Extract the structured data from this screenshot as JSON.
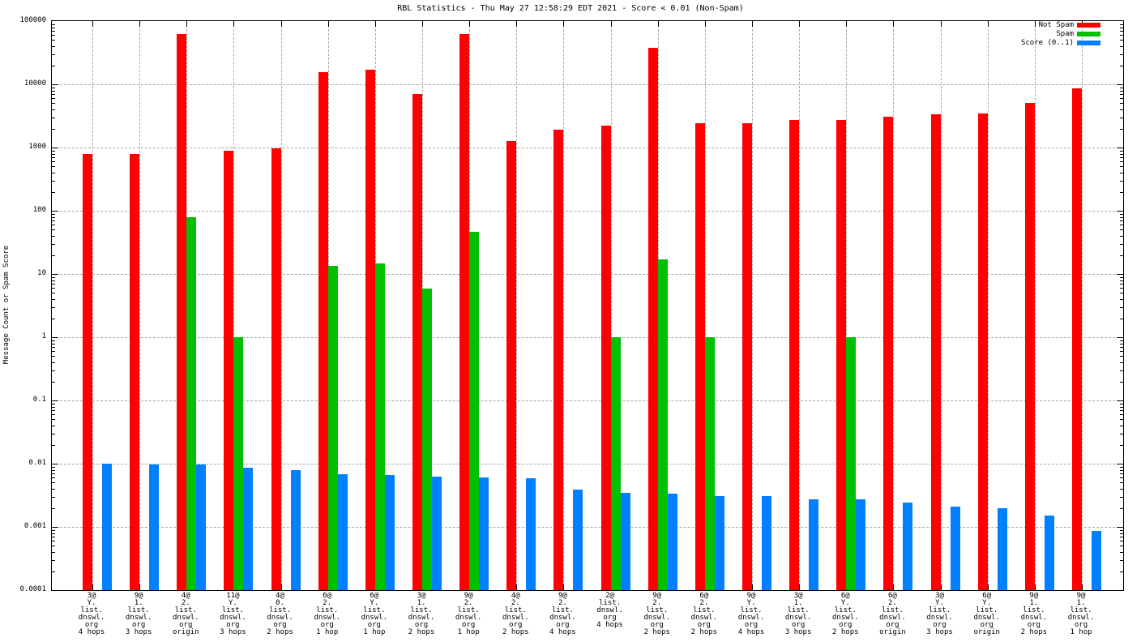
{
  "title": "RBL Statistics - Thu May 27 12:58:29 EDT 2021 - Score < 0.01 (Non-Spam)",
  "ylabel": "Message Count or Spam Score",
  "chart_data": {
    "type": "bar",
    "y_scale": "log10",
    "ylim": [
      0.0001,
      100000
    ],
    "y_ticks": [
      "100000",
      "10000",
      "1000",
      "100",
      "10",
      "1",
      "0.1",
      "0.01",
      "0.001",
      "0.0001"
    ],
    "grid": true,
    "legend_position": "top-right-inside",
    "colors": {
      "not_spam": "#ff0000",
      "spam": "#00c000",
      "score": "#0080ff",
      "grid": "#a9a9a9"
    },
    "categories": [
      [
        "3@",
        "Y.",
        "list.",
        "dnswl.",
        "org",
        "4 hops"
      ],
      [
        "9@",
        "1.",
        "list.",
        "dnswl.",
        "org",
        "3 hops"
      ],
      [
        "4@",
        "2.",
        "list.",
        "dnswl.",
        "org",
        "origin"
      ],
      [
        "11@",
        "Y.",
        "list.",
        "dnswl.",
        "org",
        "3 hops"
      ],
      [
        "4@",
        "0.",
        "list.",
        "dnswl.",
        "org",
        "2 hops"
      ],
      [
        "6@",
        "2.",
        "list.",
        "dnswl.",
        "org",
        "1 hop"
      ],
      [
        "6@",
        "Y.",
        "list.",
        "dnswl.",
        "org",
        "1 hop"
      ],
      [
        "3@",
        "1.",
        "list.",
        "dnswl.",
        "org",
        "2 hops"
      ],
      [
        "9@",
        "2.",
        "list.",
        "dnswl.",
        "org",
        "1 hop"
      ],
      [
        "4@",
        "2.",
        "list.",
        "dnswl.",
        "org",
        "2 hops"
      ],
      [
        "9@",
        "2.",
        "list.",
        "dnswl.",
        "org",
        "4 hops"
      ],
      [
        "2@",
        "list.",
        "dnswl.",
        "org",
        "4 hops"
      ],
      [
        "9@",
        "2.",
        "list.",
        "dnswl.",
        "org",
        "2 hops"
      ],
      [
        "6@",
        "2.",
        "list.",
        "dnswl.",
        "org",
        "2 hops"
      ],
      [
        "9@",
        "Y.",
        "list.",
        "dnswl.",
        "org",
        "4 hops"
      ],
      [
        "3@",
        "1.",
        "list.",
        "dnswl.",
        "org",
        "3 hops"
      ],
      [
        "6@",
        "Y.",
        "list.",
        "dnswl.",
        "org",
        "2 hops"
      ],
      [
        "6@",
        "2.",
        "list.",
        "dnswl.",
        "org",
        "origin"
      ],
      [
        "3@",
        "Y.",
        "list.",
        "dnswl.",
        "org",
        "3 hops"
      ],
      [
        "6@",
        "Y.",
        "list.",
        "dnswl.",
        "org",
        "origin"
      ],
      [
        "9@",
        "1.",
        "list.",
        "dnswl.",
        "org",
        "2 hops"
      ],
      [
        "9@",
        "1.",
        "list.",
        "dnswl.",
        "org",
        "1 hop"
      ]
    ],
    "series": [
      {
        "name": "Not Spam",
        "color": "#ff0000",
        "values": [
          780,
          790,
          62000,
          880,
          960,
          15500,
          17000,
          7000,
          62000,
          1270,
          1920,
          2200,
          38000,
          2430,
          2460,
          2730,
          2730,
          3090,
          3380,
          3420,
          5090,
          8670
        ]
      },
      {
        "name": "Spam",
        "color": "#00c000",
        "values": [
          null,
          null,
          80,
          1,
          null,
          13.5,
          14.5,
          5.9,
          46,
          null,
          null,
          1,
          17,
          1,
          null,
          null,
          1,
          null,
          null,
          null,
          null,
          null
        ]
      },
      {
        "name": "Score (0..1)",
        "color": "#0080ff",
        "values": [
          0.01,
          0.0097,
          0.0096,
          0.0086,
          0.0079,
          0.0069,
          0.0066,
          0.0063,
          0.006,
          0.0059,
          0.0039,
          0.0035,
          0.0034,
          0.0031,
          0.0031,
          0.0027,
          0.0027,
          0.0024,
          0.0021,
          0.002,
          0.0015,
          0.00086
        ]
      }
    ]
  }
}
